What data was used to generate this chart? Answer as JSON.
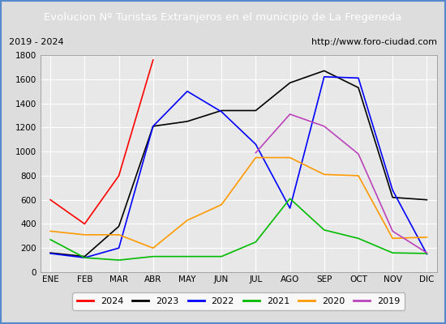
{
  "title": "Evolucion Nº Turistas Extranjeros en el municipio de La Fregeneda",
  "subtitle_left": "2019 - 2024",
  "subtitle_right": "http://www.foro-ciudad.com",
  "title_bg_color": "#5588cc",
  "title_text_color": "#ffffff",
  "months": [
    "ENE",
    "FEB",
    "MAR",
    "ABR",
    "MAY",
    "JUN",
    "JUL",
    "AGO",
    "SEP",
    "OCT",
    "NOV",
    "DIC"
  ],
  "ylim": [
    0,
    1800
  ],
  "yticks": [
    0,
    200,
    400,
    600,
    800,
    1000,
    1200,
    1400,
    1600,
    1800
  ],
  "series": {
    "2024": {
      "color": "#ff0000",
      "values": [
        600,
        400,
        800,
        1760,
        null,
        null,
        null,
        null,
        null,
        null,
        null,
        null
      ]
    },
    "2023": {
      "color": "#000000",
      "values": [
        160,
        130,
        380,
        1210,
        1250,
        1340,
        1340,
        1570,
        1670,
        1530,
        620,
        600
      ]
    },
    "2022": {
      "color": "#0000ff",
      "values": [
        155,
        120,
        200,
        1210,
        1500,
        1330,
        1060,
        530,
        1620,
        1610,
        680,
        150
      ]
    },
    "2021": {
      "color": "#00bb00",
      "values": [
        270,
        120,
        100,
        130,
        130,
        130,
        250,
        610,
        350,
        280,
        160,
        155
      ]
    },
    "2020": {
      "color": "#ff9900",
      "values": [
        340,
        310,
        310,
        200,
        430,
        560,
        950,
        950,
        810,
        800,
        280,
        290
      ]
    },
    "2019": {
      "color": "#bb44bb",
      "values": [
        null,
        null,
        null,
        null,
        null,
        null,
        990,
        1310,
        1210,
        980,
        340,
        160
      ]
    }
  },
  "legend_order": [
    "2024",
    "2023",
    "2022",
    "2021",
    "2020",
    "2019"
  ],
  "plot_bg_color": "#e8e8e8",
  "fig_bg_color": "#dddddd",
  "subtitle_bg": "#f0f0f0",
  "border_color": "#5588cc"
}
